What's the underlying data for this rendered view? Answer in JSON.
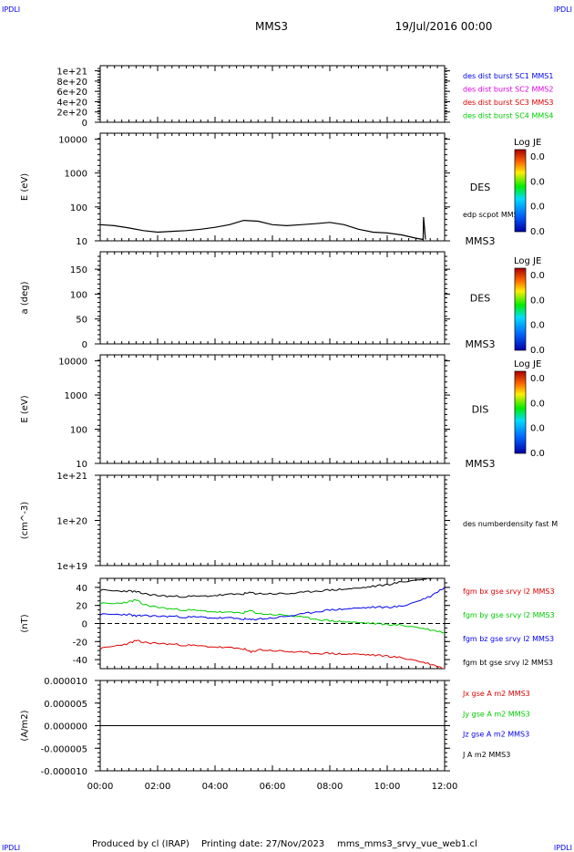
{
  "header": {
    "corner_left": "IPDLI",
    "corner_right": "IPDLI",
    "spacecraft": "MMS3",
    "datetime": "19/Jul/2016 00:00"
  },
  "footer": {
    "produced_by": "Produced by cl (IRAP)",
    "printing_date": "Printing date: 27/Nov/2023",
    "template": "mms_mms3_srvy_vue_web1.cl",
    "corner_left": "IPDLI",
    "corner_right": "IPDLI"
  },
  "colors": {
    "black": "#000000",
    "blue": "#0000ee",
    "magenta": "#dd00dd",
    "red": "#dd0000",
    "green": "#00cc00",
    "panel_border": "#000000"
  },
  "chart_data": [
    {
      "id": "p1",
      "type": "line",
      "ylabel": "",
      "ylim": [
        0,
        1.1e+21
      ],
      "ticks": [
        "1e+21",
        "8e+20",
        "6e+20",
        "4e+20",
        "2e+20",
        "0"
      ],
      "tick_values": [
        1e+21,
        8e+20,
        6e+20,
        4e+20,
        2e+20,
        0
      ],
      "zero_line": true,
      "legend": [
        {
          "label": "des dist burst SC1 MMS1",
          "color": "#0000ee"
        },
        {
          "label": "des dist burst SC2 MMS2",
          "color": "#dd00dd"
        },
        {
          "label": "des dist burst SC3 MMS3",
          "color": "#dd0000"
        },
        {
          "label": "des dist burst SC4 MMS4",
          "color": "#00cc00"
        }
      ]
    },
    {
      "id": "p2",
      "type": "heatmap",
      "scale": "log",
      "ylabel": "E (eV)",
      "ylim": [
        10,
        15000
      ],
      "ticks": [
        "10000",
        "1000",
        "100",
        "10"
      ],
      "tick_values": [
        10000,
        1000,
        100,
        10
      ],
      "instrument": "DES",
      "spacecraft": "MMS3",
      "overlay_label": "edp scpot MMS3",
      "colorbar": {
        "title": "Log JE",
        "values": [
          "0.0",
          "0.0",
          "0.0",
          "0.0"
        ]
      },
      "overlay": {
        "name": "edp scpot MMS3",
        "x": [
          "00:00",
          "00:30",
          "01:00",
          "01:30",
          "02:00",
          "02:30",
          "03:00",
          "03:30",
          "04:00",
          "04:30",
          "05:00",
          "05:30",
          "06:00",
          "06:30",
          "07:00",
          "07:30",
          "08:00",
          "08:30",
          "09:00",
          "09:30",
          "10:00",
          "10:30",
          "11:00",
          "11:15",
          "11:16",
          "11:20"
        ],
        "y": [
          30,
          28,
          24,
          20,
          18,
          19,
          20,
          22,
          25,
          30,
          40,
          38,
          30,
          28,
          30,
          32,
          35,
          30,
          22,
          18,
          17,
          15,
          12,
          11,
          50,
          11
        ]
      }
    },
    {
      "id": "p3",
      "type": "heatmap",
      "ylabel": "a (deg)",
      "ylim": [
        0,
        185
      ],
      "ticks": [
        "150",
        "100",
        "50",
        "0"
      ],
      "tick_values": [
        150,
        100,
        50,
        0
      ],
      "instrument": "DES",
      "spacecraft": "MMS3",
      "colorbar": {
        "title": "Log JE",
        "values": [
          "0.0",
          "0.0",
          "0.0",
          "0.0"
        ]
      }
    },
    {
      "id": "p4",
      "type": "heatmap",
      "scale": "log",
      "ylabel": "E (eV)",
      "ylim": [
        10,
        15000
      ],
      "ticks": [
        "10000",
        "1000",
        "100",
        "10"
      ],
      "tick_values": [
        10000,
        1000,
        100,
        10
      ],
      "instrument": "DIS",
      "spacecraft": "MMS3",
      "colorbar": {
        "title": "Log JE",
        "values": [
          "0.0",
          "0.0",
          "0.0",
          "0.0"
        ]
      }
    },
    {
      "id": "p5",
      "type": "line",
      "scale": "log",
      "ylabel": "(cm^-3)",
      "ylim": [
        1e+19,
        1e+21
      ],
      "ticks": [
        "1e+21",
        "1e+20",
        "1e+19"
      ],
      "tick_values": [
        1e+21,
        1e+20,
        1e+19
      ],
      "legend": [
        {
          "label": "des numberdensity fast M",
          "color": "#000000"
        }
      ]
    },
    {
      "id": "p6",
      "type": "line",
      "ylabel": "(nT)",
      "ylim": [
        -50,
        50
      ],
      "ticks": [
        "40",
        "20",
        "0",
        "-20",
        "-40"
      ],
      "tick_values": [
        40,
        20,
        0,
        -20,
        -40
      ],
      "zero_line": true,
      "x": [
        "00:00",
        "00:30",
        "01:00",
        "01:15",
        "01:30",
        "02:00",
        "02:30",
        "03:00",
        "03:30",
        "04:00",
        "04:30",
        "05:00",
        "05:15",
        "05:30",
        "06:00",
        "06:30",
        "07:00",
        "07:30",
        "08:00",
        "08:30",
        "09:00",
        "09:30",
        "10:00",
        "10:30",
        "11:00",
        "11:30",
        "12:00"
      ],
      "series": [
        {
          "name": "fgm bx gse srvy l2 MMS3",
          "color": "#dd0000",
          "values": [
            -28,
            -25,
            -22,
            -19,
            -21,
            -22,
            -23,
            -24,
            -25,
            -26,
            -27,
            -28,
            -32,
            -29,
            -30,
            -31,
            -32,
            -33,
            -33,
            -34,
            -34,
            -35,
            -36,
            -38,
            -41,
            -45,
            -50
          ]
        },
        {
          "name": "fgm by gse srvy l2 MMS3",
          "color": "#00cc00",
          "values": [
            22,
            22,
            24,
            26,
            21,
            18,
            16,
            15,
            14,
            13,
            12,
            12,
            14,
            11,
            10,
            9,
            7,
            5,
            3,
            2,
            1,
            0,
            -1,
            -2,
            -4,
            -7,
            -10
          ]
        },
        {
          "name": "fgm bz gse srvy l2 MMS3",
          "color": "#0000ee",
          "values": [
            10,
            10,
            10,
            8,
            9,
            8,
            8,
            7,
            7,
            6,
            6,
            5,
            4,
            5,
            6,
            8,
            10,
            13,
            15,
            16,
            17,
            18,
            18,
            19,
            24,
            30,
            40
          ]
        },
        {
          "name": "fgm bt gse srvy l2 MMS3",
          "color": "#000000",
          "values": [
            37,
            36,
            36,
            35,
            33,
            31,
            30,
            30,
            30,
            31,
            32,
            33,
            34,
            33,
            33,
            33,
            34,
            36,
            37,
            38,
            39,
            41,
            43,
            46,
            48,
            50,
            52
          ]
        }
      ]
    },
    {
      "id": "p7",
      "type": "line",
      "ylabel": "(A/m2)",
      "ylim": [
        -1e-05,
        1e-05
      ],
      "ticks": [
        "0.000010",
        "0.000005",
        "0.000000",
        "-0.000005",
        "-0.000010"
      ],
      "tick_values": [
        1e-05,
        5e-06,
        0,
        -5e-06,
        -1e-05
      ],
      "legend": [
        {
          "label": "Jx gse A m2 MMS3",
          "color": "#dd0000"
        },
        {
          "label": "Jy gse A m2 MMS3",
          "color": "#00cc00"
        },
        {
          "label": "Jz gse A m2 MMS3",
          "color": "#0000ee"
        },
        {
          "label": "J A m2 MMS3",
          "color": "#000000"
        }
      ],
      "x": [
        "00:00",
        "12:00"
      ],
      "series": [
        {
          "name": "J A m2 MMS3",
          "color": "#000000",
          "values": [
            0,
            0
          ]
        }
      ],
      "xticks": [
        "00:00",
        "02:00",
        "04:00",
        "06:00",
        "08:00",
        "10:00",
        "12:00"
      ],
      "xlim": [
        "00:00",
        "12:00"
      ]
    }
  ]
}
